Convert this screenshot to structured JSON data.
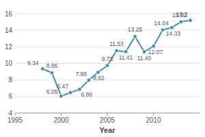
{
  "chart_data": {
    "type": "line",
    "x_label": "Year",
    "x": [
      1998,
      1999,
      2000,
      2001,
      2002,
      2003,
      2004,
      2005,
      2006,
      2007,
      2008,
      2009,
      2010,
      2011,
      2012,
      2013,
      2014
    ],
    "values": [
      9.34,
      8.86,
      6.05,
      6.47,
      6.86,
      7.98,
      8.92,
      9.73,
      11.53,
      11.41,
      13.25,
      11.4,
      12.07,
      14.04,
      14.33,
      15.02,
      15.2
    ],
    "value_labels": [
      "9.34",
      "8.86",
      "6.05",
      "6.47",
      "6.86",
      "7.98",
      "8.92",
      "9.73",
      "11.53",
      "11.41",
      "13.25",
      "11.40",
      "12.07",
      "14.04",
      "14.33",
      "15.02",
      "15.2"
    ],
    "color": "#3d8db5",
    "marker": "circle",
    "xlim": [
      1995,
      2015
    ],
    "xticks": [
      1995,
      2000,
      2005,
      2010
    ],
    "ylim": [
      4,
      16
    ],
    "yticks": [
      4,
      6,
      8,
      10,
      12,
      14,
      16
    ],
    "grid": true,
    "data_labels": true
  }
}
